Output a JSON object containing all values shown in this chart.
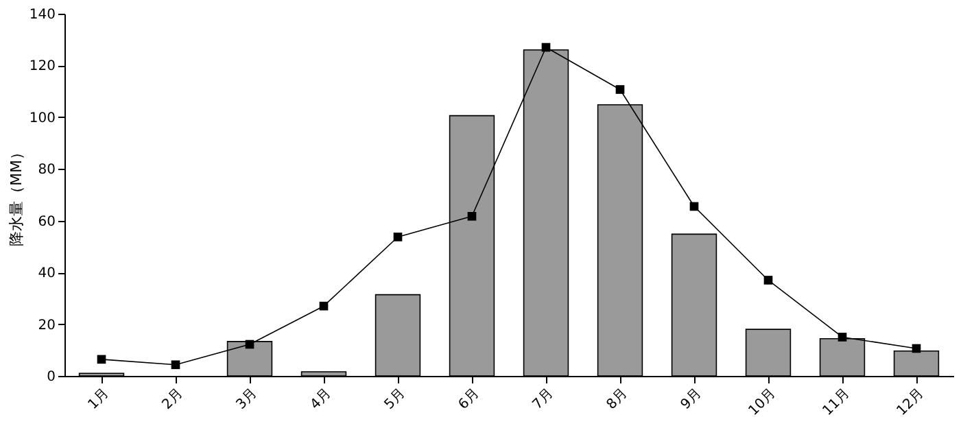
{
  "chart_data": {
    "type": "bar",
    "ylabel": "降水量（MM）",
    "categories": [
      "1月",
      "2月",
      "3月",
      "4月",
      "5月",
      "6月",
      "7月",
      "8月",
      "9月",
      "10月",
      "11月",
      "12月"
    ],
    "series": [
      {
        "color": "#9a9a9a",
        "values": [
          1,
          null,
          13.3,
          1.6,
          31.4,
          100.6,
          126,
          104.8,
          54.8,
          18,
          14.4,
          9.6
        ]
      },
      {
        "type": "line",
        "color": "#000000",
        "marker": "square",
        "values": [
          6.4,
          4.3,
          12.2,
          27,
          53.7,
          61.7,
          127,
          110.7,
          65.5,
          37,
          15,
          10.6
        ]
      }
    ],
    "ylim": [
      0,
      140
    ],
    "yticks": [
      0,
      20,
      40,
      60,
      80,
      100,
      120,
      140
    ],
    "grid": false
  }
}
